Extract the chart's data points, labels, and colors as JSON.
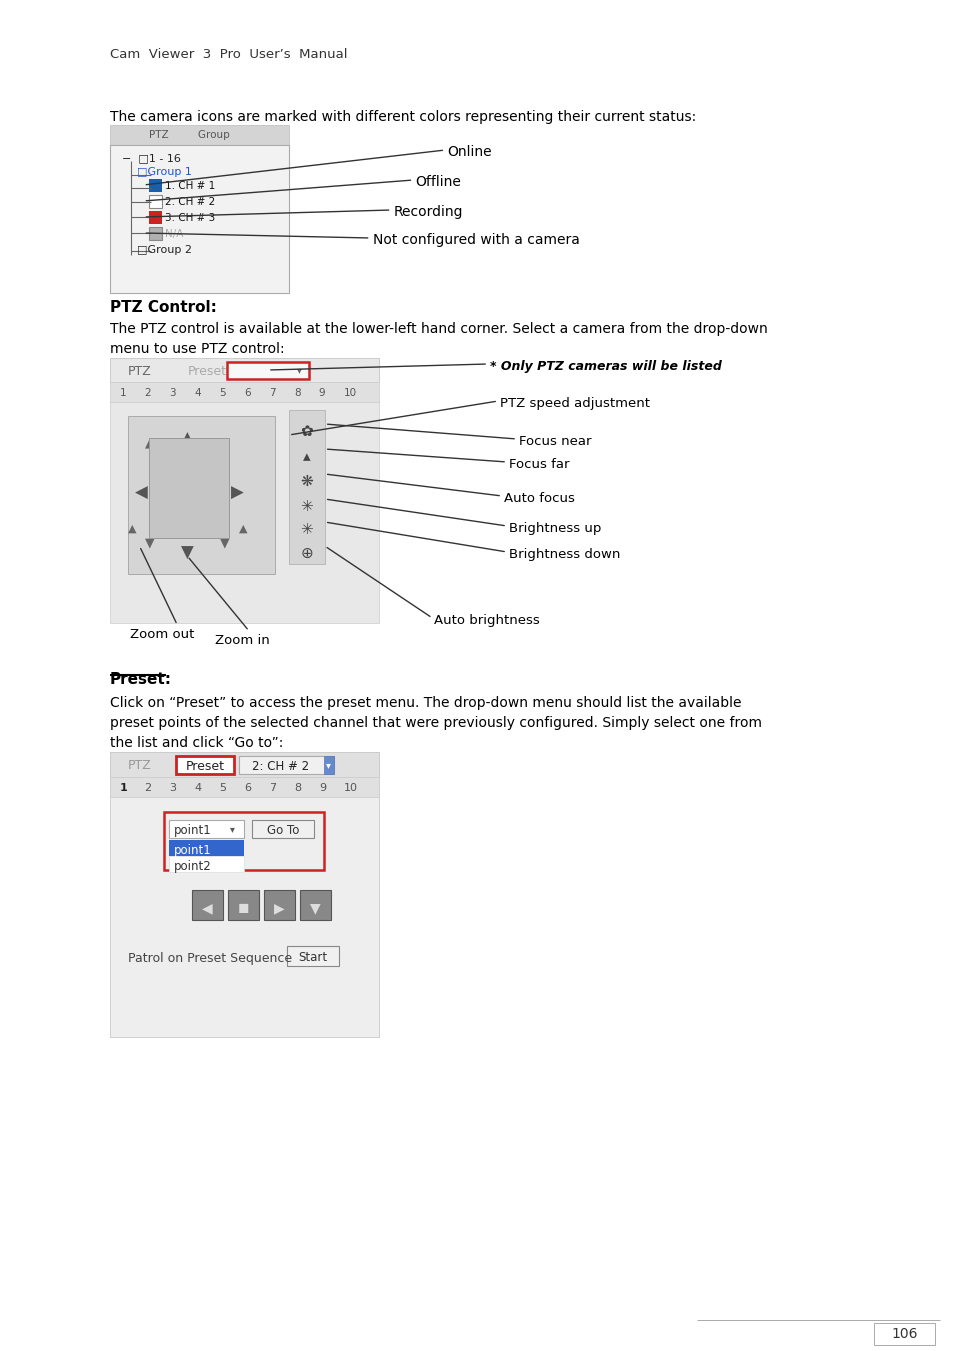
{
  "page_bg": "#ffffff",
  "header_text": "Cam  Viewer  3  Pro  User’s  Manual",
  "section1_intro": "The camera icons are marked with different colors representing their current status:",
  "section2_heading": "PTZ Control:",
  "section2_body1": "The PTZ control is available at the lower-left hand corner. Select a camera from the drop-down",
  "section2_body2": "menu to use PTZ control:",
  "section3_heading": "Preset:",
  "section3_body1": "Click on “Preset” to access the preset menu. The drop-down menu should list the available",
  "section3_body2": "preset points of the selected channel that were previously configured. Simply select one from",
  "section3_body3": "the list and click “Go to”:",
  "page_number": "106",
  "only_ptz_note": "* Only PTZ cameras will be listed",
  "ptz_speed_label": "PTZ speed adjustment",
  "focus_near_label": "Focus near",
  "focus_far_label": "Focus far",
  "auto_focus_label": "Auto focus",
  "brightness_up_label": "Brightness up",
  "brightness_down_label": "Brightness down",
  "zoom_out_label": "Zoom out",
  "zoom_in_label": "Zoom in",
  "auto_brightness_label": "Auto brightness",
  "online_label": "Online",
  "offline_label": "Offline",
  "recording_label": "Recording",
  "not_configured_label": "Not configured with a camera"
}
